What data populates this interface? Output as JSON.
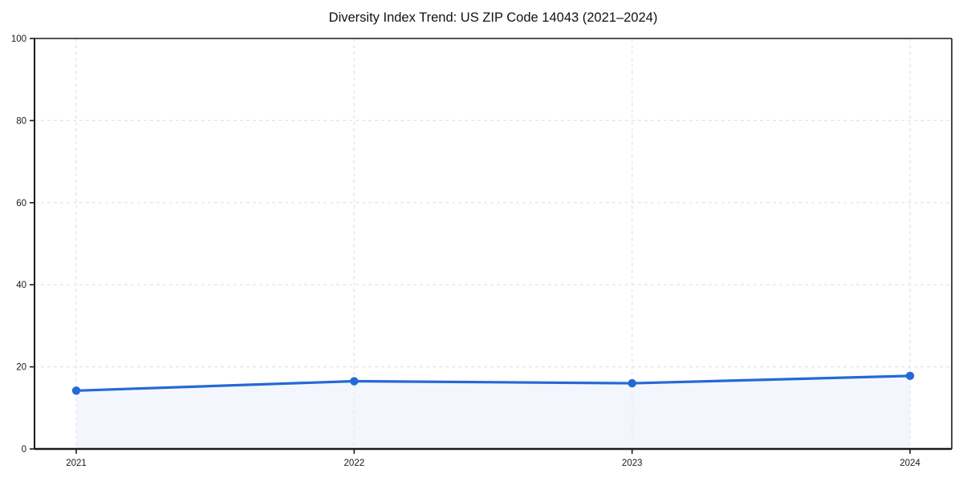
{
  "chart_data": {
    "type": "line",
    "title": "Diversity Index Trend: US ZIP Code 14043 (2021–2024)",
    "x": [
      "2021",
      "2022",
      "2023",
      "2024"
    ],
    "series": [
      {
        "name": "Diversity Index",
        "values": [
          14.2,
          16.5,
          16.0,
          17.8
        ]
      }
    ],
    "xlabel": "",
    "ylabel": "",
    "ylim": [
      0,
      100
    ],
    "yticks": [
      0,
      20,
      40,
      60,
      80,
      100
    ],
    "grid": true,
    "grid_style": "dashed",
    "legend": false,
    "colors": {
      "line": "#2569d6",
      "marker": "#2569d6",
      "fill": "#e9f1fc",
      "fill_alpha": 0.55,
      "gridline": "#e3e3e3",
      "spine": "#1a1a1a",
      "background": "#ffffff",
      "text": "#111111"
    }
  }
}
